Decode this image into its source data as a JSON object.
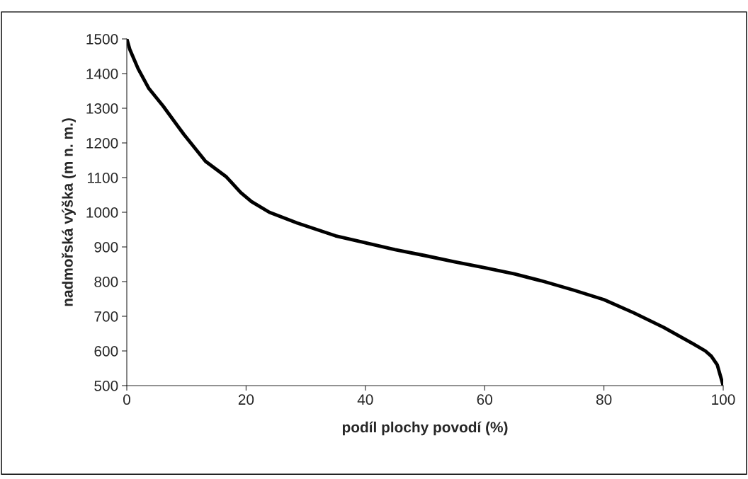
{
  "chart_data": {
    "type": "line",
    "xlabel": "podíl plochy povodí (%)",
    "ylabel": "nadmořská výška (m n. m.)",
    "x": [
      0,
      0.5,
      1.9,
      3.7,
      6.1,
      9.6,
      13.2,
      16.7,
      19.1,
      20.9,
      23.9,
      28.6,
      35,
      40,
      45,
      50,
      55,
      60,
      65,
      70,
      75,
      80,
      85,
      90,
      95,
      97,
      98,
      99,
      100
    ],
    "series": [
      {
        "color": "#000000",
        "values": [
          1500,
          1470,
          1414,
          1357,
          1306,
          1224,
          1147,
          1102,
          1057,
          1031,
          1000,
          969,
          932,
          912,
          892,
          875,
          857,
          840,
          822,
          800,
          775,
          748,
          710,
          668,
          620,
          600,
          585,
          560,
          500
        ]
      }
    ],
    "xlim": [
      0,
      100
    ],
    "ylim": [
      500,
      1500
    ],
    "xticks": [
      0,
      20,
      40,
      60,
      80,
      100
    ],
    "yticks": [
      500,
      600,
      700,
      800,
      900,
      1000,
      1100,
      1200,
      1300,
      1400,
      1500
    ],
    "grid": false,
    "legend": false,
    "marker": "none",
    "line_style": "solid"
  }
}
